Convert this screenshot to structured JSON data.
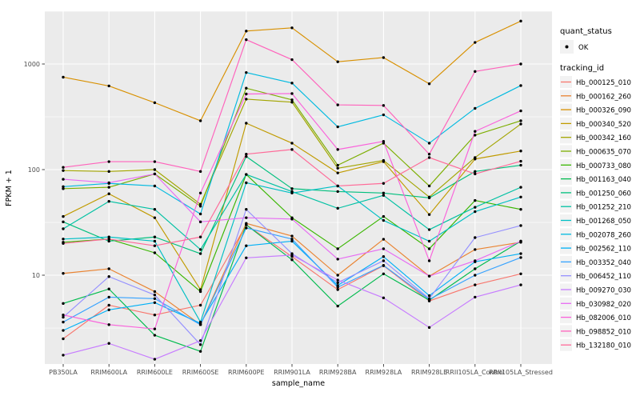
{
  "figure": {
    "background": "#FFFFFF",
    "panel_background": "#EBEBEB",
    "grid_color": "#FFFFFF",
    "tick_color": "#333333",
    "axis_text_color": "#4D4D4D",
    "legend_key_fill": "#F2F2F2",
    "point_color": "#000000"
  },
  "legend": {
    "quant_status": {
      "title": "quant_status",
      "items": [
        {
          "label": "OK",
          "marker": "point",
          "color": "#000000"
        }
      ]
    },
    "tracking_id": {
      "title": "tracking_id"
    }
  },
  "chart_data": {
    "type": "line",
    "x_type": "categorical",
    "title": "",
    "xlabel": "sample_name",
    "ylabel": "FPKM + 1",
    "y_scale": "log10",
    "y_breaks": [
      10,
      100,
      1000
    ],
    "y_break_labels": [
      "10",
      "100",
      "1000"
    ],
    "y_minor_breaks": [
      3.16,
      31.6,
      316,
      3160
    ],
    "ylim": [
      1.4,
      3200
    ],
    "grid": true,
    "legend_position": "right",
    "marker": "point",
    "categories": [
      "PB350LA",
      "RRIM600LA",
      "RRIM600LE",
      "RRIM600SE",
      "RRIM600PE",
      "RRIM901LA",
      "RRIM928BA",
      "RRIM928LA",
      "RRIM928LE",
      "RRII105LA_Control",
      "RRII105LA_Stressed"
    ],
    "series": [
      {
        "name": "Hb_000125_010",
        "color": "#F8766D",
        "values": [
          2.5,
          5.2,
          4.2,
          5.2,
          30,
          15,
          7.3,
          12.3,
          5.7,
          8.1,
          10.3
        ]
      },
      {
        "name": "Hb_000162_260",
        "color": "#EA8331",
        "values": [
          10.4,
          11.5,
          7.0,
          3.4,
          31,
          23.5,
          10.0,
          21.9,
          9.8,
          17.5,
          20.5
        ]
      },
      {
        "name": "Hb_000326_090",
        "color": "#D89000",
        "values": [
          750,
          620,
          430,
          290,
          2050,
          2200,
          1050,
          1150,
          650,
          1600,
          2550
        ]
      },
      {
        "name": "Hb_000340_520",
        "color": "#C09B00",
        "values": [
          36,
          59,
          35,
          7.3,
          275,
          178,
          93,
          119,
          37.5,
          126,
          150
        ]
      },
      {
        "name": "Hb_000342_160",
        "color": "#A3A500",
        "values": [
          98,
          96,
          100,
          47,
          465,
          435,
          103,
          122,
          55,
          130,
          270
        ]
      },
      {
        "name": "Hb_000635_070",
        "color": "#7CAE00",
        "values": [
          66,
          68,
          91,
          45,
          590,
          458,
          110,
          178,
          70,
          212,
          290
        ]
      },
      {
        "name": "Hb_000733_080",
        "color": "#39B600",
        "values": [
          20.5,
          22,
          16.3,
          7.0,
          90,
          35,
          17.8,
          36,
          17.8,
          51,
          42
        ]
      },
      {
        "name": "Hb_001163_040",
        "color": "#00BB4E",
        "values": [
          5.4,
          7.4,
          2.7,
          1.9,
          30,
          14,
          5.1,
          10.3,
          5.8,
          11.5,
          21
        ]
      },
      {
        "name": "Hb_001250_060",
        "color": "#00BF7D",
        "values": [
          32,
          21,
          23,
          16,
          133,
          66,
          62,
          60,
          54,
          96,
          110
        ]
      },
      {
        "name": "Hb_001252_210",
        "color": "#00C1A3",
        "values": [
          27.5,
          50,
          42,
          17.5,
          90,
          62,
          43,
          57,
          27,
          44,
          68
        ]
      },
      {
        "name": "Hb_001268_050",
        "color": "#00BFC4",
        "values": [
          22,
          23,
          21,
          3.6,
          75,
          60,
          70,
          33,
          21,
          40,
          55
        ]
      },
      {
        "name": "Hb_002078_260",
        "color": "#00BAE0",
        "values": [
          69,
          74,
          70,
          38,
          830,
          660,
          254,
          330,
          178,
          380,
          625
        ]
      },
      {
        "name": "Hb_002562_110",
        "color": "#00B0F6",
        "values": [
          3.0,
          4.7,
          5.5,
          3.5,
          19,
          21,
          8.0,
          15,
          6.4,
          13.4,
          16
        ]
      },
      {
        "name": "Hb_003352_040",
        "color": "#35A2FF",
        "values": [
          3.6,
          6.2,
          6.0,
          3.4,
          28,
          22,
          7.7,
          12.4,
          5.9,
          10,
          14.7
        ]
      },
      {
        "name": "Hb_006452_110",
        "color": "#9590FF",
        "values": [
          4.0,
          9.7,
          6.5,
          2.2,
          42,
          16,
          8.5,
          13.7,
          6.0,
          22.7,
          29.5
        ]
      },
      {
        "name": "Hb_009270_030",
        "color": "#C77CFF",
        "values": [
          1.75,
          2.26,
          1.6,
          2.4,
          14.6,
          15.5,
          9.0,
          6.1,
          3.2,
          6.2,
          8.1
        ]
      },
      {
        "name": "Hb_030982_020",
        "color": "#E76BF3",
        "values": [
          81,
          75,
          91,
          32,
          35,
          34,
          14.2,
          17.8,
          9.8,
          13.7,
          21
        ]
      },
      {
        "name": "Hb_082006_010",
        "color": "#FA62DB",
        "values": [
          4.2,
          3.4,
          3.1,
          60,
          520,
          525,
          155,
          185,
          13.7,
          230,
          360
        ]
      },
      {
        "name": "Hb_098852_010",
        "color": "#FF62BC",
        "values": [
          105,
          119,
          119,
          96,
          1700,
          1100,
          410,
          405,
          140,
          850,
          1000
        ]
      },
      {
        "name": "Hb_132180_010",
        "color": "#FF6A98",
        "values": [
          20,
          22,
          19,
          23,
          140,
          155,
          70,
          74,
          130,
          91,
          120
        ]
      }
    ]
  }
}
